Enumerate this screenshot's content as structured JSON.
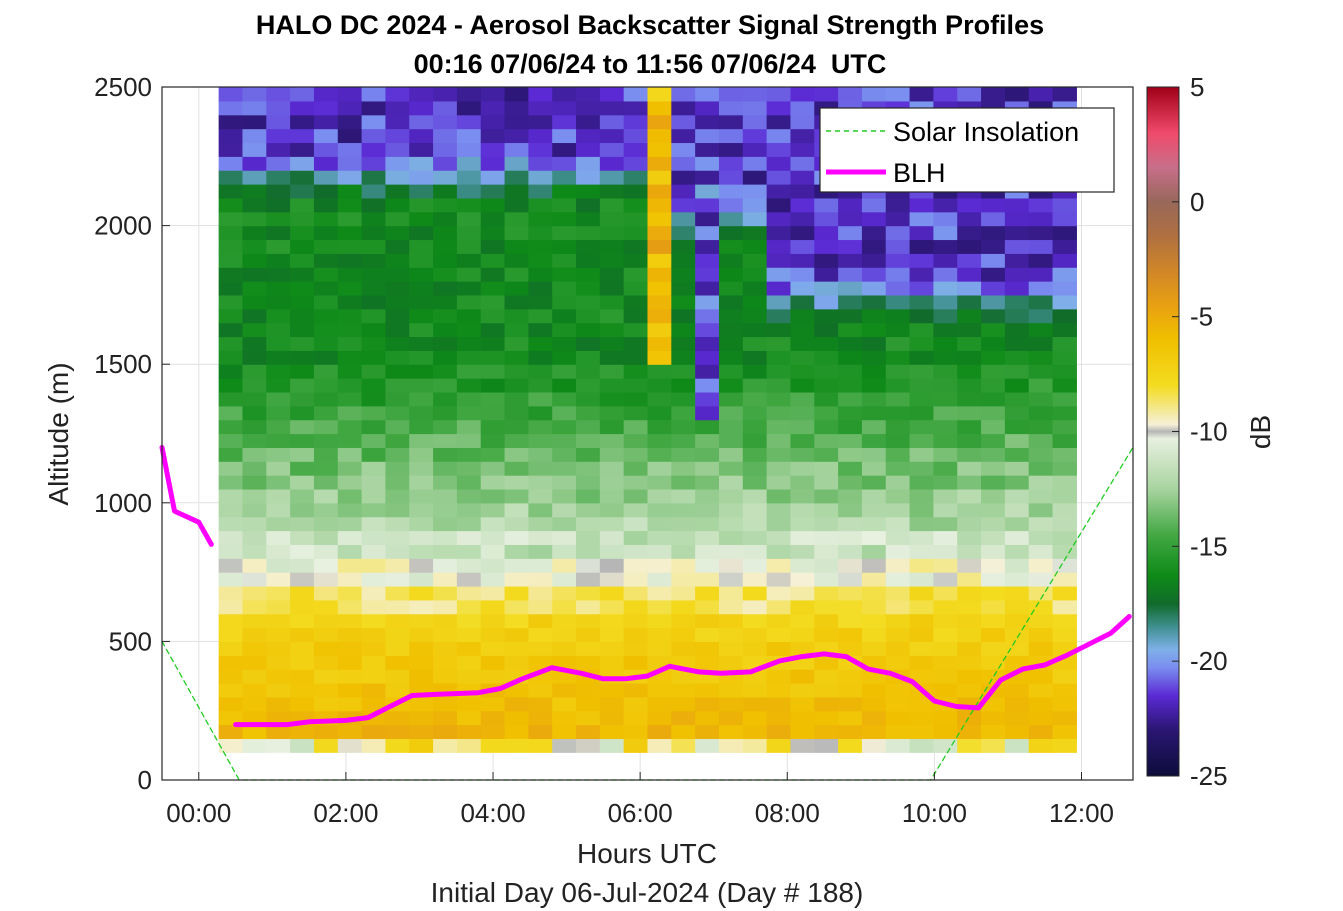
{
  "chart_data": {
    "type": "heatmap",
    "title": "HALO DC 2024 - Aerosol Backscatter Signal Strength Profiles",
    "subtitle": "00:16 07/06/24 to 11:56 07/06/24  UTC",
    "xlabel": "Hours UTC",
    "xlabel2": "Initial Day 06-Jul-2024 (Day # 188)",
    "ylabel": "Altitude (m)",
    "colorbar_label": "dB",
    "xlim": [
      -0.5,
      12.7
    ],
    "ylim": [
      0,
      2500
    ],
    "xticks": [
      0,
      2,
      4,
      6,
      8,
      10,
      12
    ],
    "xtick_labels": [
      "00:00",
      "02:00",
      "04:00",
      "06:00",
      "08:00",
      "10:00",
      "12:00"
    ],
    "yticks": [
      0,
      500,
      1000,
      1500,
      2000,
      2500
    ],
    "ytick_labels": [
      "0",
      "500",
      "1000",
      "1500",
      "2000",
      "2500"
    ],
    "clim": [
      -25,
      5
    ],
    "cticks": [
      5,
      0,
      -5,
      -10,
      -15,
      -20,
      -25
    ],
    "ctick_labels": [
      "5",
      "0",
      "-5",
      "-10",
      "-15",
      "-20",
      "-25"
    ],
    "grid": true,
    "legend_position": "top-right",
    "data_extent": {
      "time_hours": [
        0.27,
        11.93
      ],
      "altitude_m": [
        100,
        2500
      ]
    },
    "series": [
      {
        "name": "Solar Insolation",
        "style": "dashed",
        "color": "#22cc22",
        "x": [
          -0.5,
          0.55,
          9.95,
          12.7
        ],
        "y": [
          500,
          0,
          0,
          1200
        ]
      },
      {
        "name": "BLH",
        "style": "solid",
        "color": "#ff00ff",
        "x": [
          -0.5,
          -0.33,
          0.0,
          0.17
        ],
        "y": [
          1200,
          970,
          930,
          850
        ]
      },
      {
        "name": "BLH",
        "style": "solid",
        "color": "#ff00ff",
        "x": [
          0.5,
          1.2,
          1.5,
          2.0,
          2.3,
          2.6,
          2.9,
          3.3,
          3.8,
          4.1,
          4.4,
          4.8,
          5.2,
          5.5,
          5.8,
          6.1,
          6.4,
          6.8,
          7.1,
          7.5,
          7.9,
          8.2,
          8.5,
          8.8,
          9.1,
          9.4,
          9.7,
          10.0,
          10.3,
          10.6,
          10.9,
          11.2,
          11.5,
          11.8,
          12.1,
          12.4,
          12.65
        ],
        "y": [
          200,
          200,
          210,
          215,
          225,
          265,
          305,
          310,
          315,
          330,
          365,
          405,
          385,
          365,
          365,
          375,
          410,
          390,
          385,
          390,
          430,
          445,
          455,
          445,
          400,
          385,
          355,
          285,
          265,
          260,
          360,
          400,
          415,
          450,
          490,
          530,
          590
        ]
      }
    ],
    "colormap": [
      {
        "v": -25,
        "c": "#0d0d3a"
      },
      {
        "v": -23,
        "c": "#2a1672"
      },
      {
        "v": -21.5,
        "c": "#5b2ad4"
      },
      {
        "v": -20.3,
        "c": "#7a8cf0"
      },
      {
        "v": -19.5,
        "c": "#7fb0e8"
      },
      {
        "v": -18.5,
        "c": "#3f8f8f"
      },
      {
        "v": -17.5,
        "c": "#116b2a"
      },
      {
        "v": -16.3,
        "c": "#0e8a18"
      },
      {
        "v": -14.5,
        "c": "#43a843"
      },
      {
        "v": -12.5,
        "c": "#a8d4a0"
      },
      {
        "v": -10.3,
        "c": "#e8f0e0"
      },
      {
        "v": -10,
        "c": "#b5b5b5"
      },
      {
        "v": -9.7,
        "c": "#f5f0d8"
      },
      {
        "v": -8,
        "c": "#f3dc20"
      },
      {
        "v": -6,
        "c": "#f0c000"
      },
      {
        "v": -4.5,
        "c": "#e8a012"
      },
      {
        "v": -3,
        "c": "#d08628"
      },
      {
        "v": -1.5,
        "c": "#b07040"
      },
      {
        "v": 0,
        "c": "#98685a"
      },
      {
        "v": 1.5,
        "c": "#c86e8a"
      },
      {
        "v": 3,
        "c": "#f04a6a"
      },
      {
        "v": 5,
        "c": "#a00018"
      }
    ]
  }
}
